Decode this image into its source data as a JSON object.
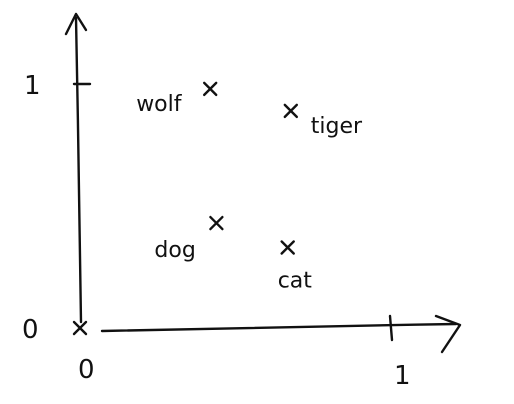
{
  "chart_data": {
    "type": "scatter",
    "title": "",
    "xlabel": "",
    "ylabel": "",
    "xlim": [
      0,
      1.2
    ],
    "ylim": [
      0,
      1.15
    ],
    "grid": false,
    "legend": "none",
    "x_ticks": [
      {
        "value": 0,
        "label": "0"
      },
      {
        "value": 1,
        "label": "1"
      }
    ],
    "y_ticks": [
      {
        "value": 0,
        "label": "0"
      },
      {
        "value": 1,
        "label": "1"
      }
    ],
    "points": [
      {
        "label": "wolf",
        "x": 0.42,
        "y": 0.98
      },
      {
        "label": "tiger",
        "x": 0.68,
        "y": 0.89
      },
      {
        "label": "dog",
        "x": 0.44,
        "y": 0.43
      },
      {
        "label": "cat",
        "x": 0.67,
        "y": 0.33
      },
      {
        "label": "",
        "x": 0.0,
        "y": 0.0
      }
    ],
    "marker": "x",
    "color": "#111111"
  }
}
